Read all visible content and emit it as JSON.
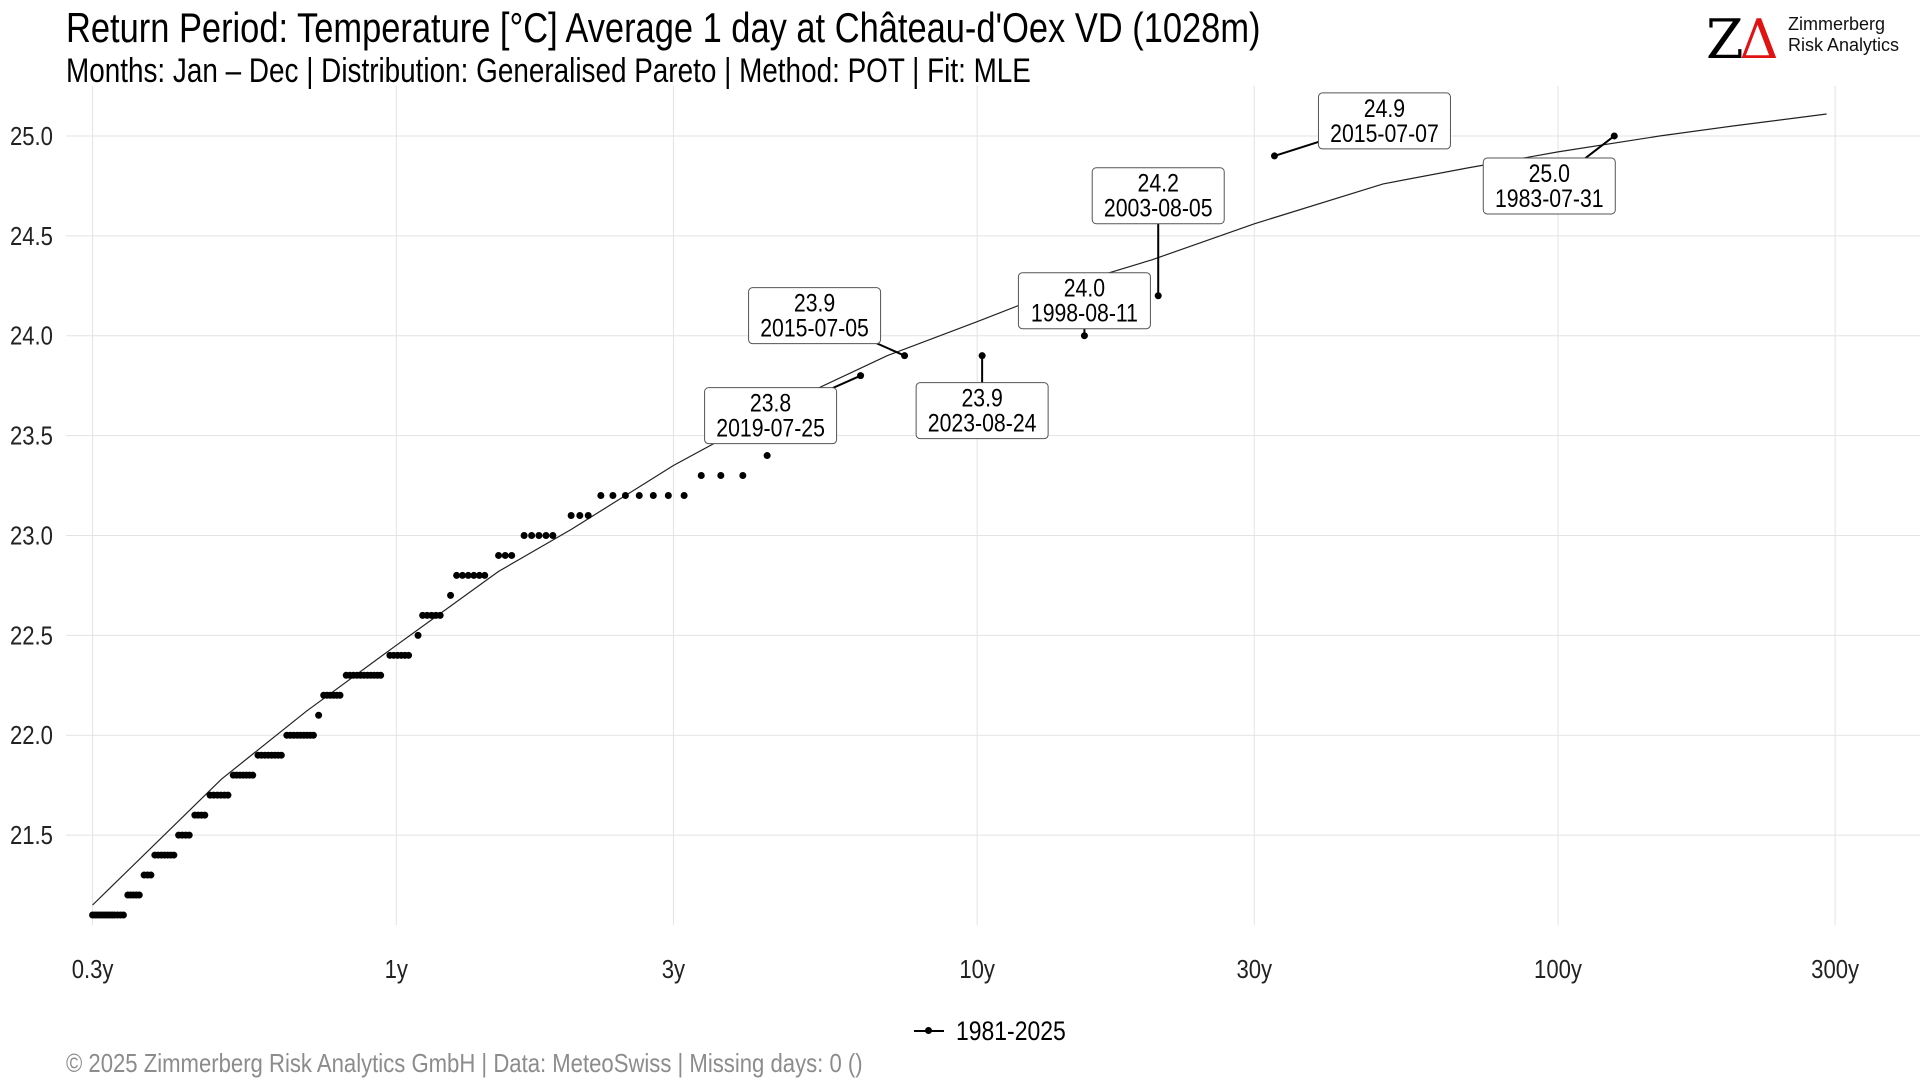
{
  "header": {
    "title": "Return Period: Temperature [°C] Average 1 day at Château-d'Oex  VD (1028m)",
    "subtitle": "Months: Jan – Dec | Distribution: Generalised Pareto | Method: POT | Fit: MLE"
  },
  "logo": {
    "mark_z": "Z",
    "mark_a": "Δ",
    "name_line1": "Zimmerberg",
    "name_line2": "Risk Analytics",
    "accent_color": "#e01212"
  },
  "legend": {
    "label": "1981-2025"
  },
  "footer": {
    "text": "©  2025 Zimmerberg Risk Analytics GmbH | Data: MeteoSwiss | Missing days: 0 ()"
  },
  "chart_data": {
    "type": "scatter",
    "x_scale": "log",
    "x_unit": "return period (years)",
    "xlim": [
      0.27,
      420
    ],
    "ylim": [
      21.05,
      25.25
    ],
    "x_ticks": [
      {
        "value": 0.3,
        "label": "0.3y"
      },
      {
        "value": 1,
        "label": "1y"
      },
      {
        "value": 3,
        "label": "3y"
      },
      {
        "value": 10,
        "label": "10y"
      },
      {
        "value": 30,
        "label": "30y"
      },
      {
        "value": 100,
        "label": "100y"
      },
      {
        "value": 300,
        "label": "300y"
      }
    ],
    "y_ticks": [
      21.5,
      22.0,
      22.5,
      23.0,
      23.5,
      24.0,
      24.5,
      25.0
    ],
    "grid": true,
    "legend_position": "bottom",
    "series": [
      {
        "name": "1981-2025",
        "kind": "points",
        "points": [
          [
            0.3,
            21.1
          ],
          [
            0.303,
            21.1
          ],
          [
            0.306,
            21.1
          ],
          [
            0.309,
            21.1
          ],
          [
            0.312,
            21.1
          ],
          [
            0.315,
            21.1
          ],
          [
            0.318,
            21.1
          ],
          [
            0.321,
            21.1
          ],
          [
            0.324,
            21.1
          ],
          [
            0.327,
            21.1
          ],
          [
            0.331,
            21.1
          ],
          [
            0.335,
            21.1
          ],
          [
            0.339,
            21.1
          ],
          [
            0.345,
            21.2
          ],
          [
            0.349,
            21.2
          ],
          [
            0.353,
            21.2
          ],
          [
            0.357,
            21.2
          ],
          [
            0.361,
            21.2
          ],
          [
            0.368,
            21.3
          ],
          [
            0.373,
            21.3
          ],
          [
            0.378,
            21.3
          ],
          [
            0.384,
            21.4
          ],
          [
            0.389,
            21.4
          ],
          [
            0.394,
            21.4
          ],
          [
            0.399,
            21.4
          ],
          [
            0.404,
            21.4
          ],
          [
            0.409,
            21.4
          ],
          [
            0.414,
            21.4
          ],
          [
            0.422,
            21.5
          ],
          [
            0.428,
            21.5
          ],
          [
            0.434,
            21.5
          ],
          [
            0.44,
            21.5
          ],
          [
            0.45,
            21.6
          ],
          [
            0.456,
            21.6
          ],
          [
            0.462,
            21.6
          ],
          [
            0.468,
            21.6
          ],
          [
            0.478,
            21.7
          ],
          [
            0.485,
            21.7
          ],
          [
            0.492,
            21.7
          ],
          [
            0.499,
            21.7
          ],
          [
            0.506,
            21.7
          ],
          [
            0.513,
            21.7
          ],
          [
            0.524,
            21.8
          ],
          [
            0.531,
            21.8
          ],
          [
            0.538,
            21.8
          ],
          [
            0.545,
            21.8
          ],
          [
            0.552,
            21.8
          ],
          [
            0.559,
            21.8
          ],
          [
            0.566,
            21.8
          ],
          [
            0.578,
            21.9
          ],
          [
            0.586,
            21.9
          ],
          [
            0.594,
            21.9
          ],
          [
            0.602,
            21.9
          ],
          [
            0.61,
            21.9
          ],
          [
            0.618,
            21.9
          ],
          [
            0.626,
            21.9
          ],
          [
            0.634,
            21.9
          ],
          [
            0.648,
            22.0
          ],
          [
            0.657,
            22.0
          ],
          [
            0.666,
            22.0
          ],
          [
            0.675,
            22.0
          ],
          [
            0.684,
            22.0
          ],
          [
            0.693,
            22.0
          ],
          [
            0.702,
            22.0
          ],
          [
            0.711,
            22.0
          ],
          [
            0.72,
            22.0
          ],
          [
            0.735,
            22.1
          ],
          [
            0.75,
            22.2
          ],
          [
            0.76,
            22.2
          ],
          [
            0.77,
            22.2
          ],
          [
            0.78,
            22.2
          ],
          [
            0.79,
            22.2
          ],
          [
            0.8,
            22.2
          ],
          [
            0.82,
            22.3
          ],
          [
            0.832,
            22.3
          ],
          [
            0.844,
            22.3
          ],
          [
            0.856,
            22.3
          ],
          [
            0.868,
            22.3
          ],
          [
            0.88,
            22.3
          ],
          [
            0.892,
            22.3
          ],
          [
            0.904,
            22.3
          ],
          [
            0.916,
            22.3
          ],
          [
            0.928,
            22.3
          ],
          [
            0.94,
            22.3
          ],
          [
            0.975,
            22.4
          ],
          [
            0.99,
            22.4
          ],
          [
            1.005,
            22.4
          ],
          [
            1.02,
            22.4
          ],
          [
            1.035,
            22.4
          ],
          [
            1.05,
            22.4
          ],
          [
            1.09,
            22.5
          ],
          [
            1.11,
            22.6
          ],
          [
            1.13,
            22.6
          ],
          [
            1.15,
            22.6
          ],
          [
            1.17,
            22.6
          ],
          [
            1.19,
            22.6
          ],
          [
            1.24,
            22.7
          ],
          [
            1.27,
            22.8
          ],
          [
            1.3,
            22.8
          ],
          [
            1.33,
            22.8
          ],
          [
            1.36,
            22.8
          ],
          [
            1.39,
            22.8
          ],
          [
            1.42,
            22.8
          ],
          [
            1.5,
            22.9
          ],
          [
            1.54,
            22.9
          ],
          [
            1.58,
            22.9
          ],
          [
            1.66,
            23.0
          ],
          [
            1.71,
            23.0
          ],
          [
            1.76,
            23.0
          ],
          [
            1.81,
            23.0
          ],
          [
            1.86,
            23.0
          ],
          [
            2.0,
            23.1
          ],
          [
            2.07,
            23.1
          ],
          [
            2.14,
            23.1
          ],
          [
            2.25,
            23.2
          ],
          [
            2.36,
            23.2
          ],
          [
            2.48,
            23.2
          ],
          [
            2.62,
            23.2
          ],
          [
            2.77,
            23.2
          ],
          [
            2.94,
            23.2
          ],
          [
            3.13,
            23.2
          ],
          [
            3.35,
            23.3
          ],
          [
            3.62,
            23.3
          ],
          [
            3.95,
            23.3
          ],
          [
            4.35,
            23.4
          ]
        ],
        "labeled": [
          {
            "x": 6.3,
            "y": 23.8,
            "label": "23.8",
            "date": "2019-07-25"
          },
          {
            "x": 7.5,
            "y": 23.9,
            "label": "23.9",
            "date": "2015-07-05"
          },
          {
            "x": 10.2,
            "y": 23.9,
            "label": "23.9",
            "date": "2023-08-24"
          },
          {
            "x": 20.5,
            "y": 24.2,
            "label": "24.2",
            "date": "2003-08-05"
          },
          {
            "x": 15.3,
            "y": 24.0,
            "label": "24.0",
            "date": "1998-08-11"
          },
          {
            "x": 32.5,
            "y": 24.9,
            "label": "24.9",
            "date": "2015-07-07"
          },
          {
            "x": 125,
            "y": 25.0,
            "label": "25.0",
            "date": "1983-07-31"
          }
        ]
      },
      {
        "name": "fit",
        "kind": "line",
        "points": [
          [
            0.3,
            21.15
          ],
          [
            0.5,
            21.78
          ],
          [
            0.7,
            22.12
          ],
          [
            1,
            22.45
          ],
          [
            1.5,
            22.82
          ],
          [
            2,
            23.03
          ],
          [
            3,
            23.35
          ],
          [
            5,
            23.7
          ],
          [
            7,
            23.9
          ],
          [
            10,
            24.07
          ],
          [
            15,
            24.27
          ],
          [
            20,
            24.38
          ],
          [
            30,
            24.56
          ],
          [
            50,
            24.76
          ],
          [
            70,
            24.84
          ],
          [
            100,
            24.92
          ],
          [
            150,
            25.0
          ],
          [
            200,
            25.05
          ],
          [
            290,
            25.11
          ]
        ]
      }
    ]
  }
}
